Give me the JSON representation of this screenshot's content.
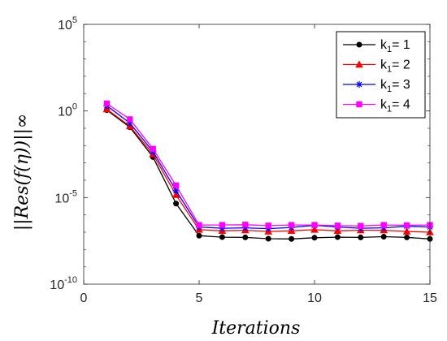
{
  "chart_data": {
    "type": "line",
    "title": "",
    "xlabel": "Iterations",
    "ylabel": "||Res(f(η))||∞",
    "xlim": [
      0,
      15
    ],
    "ylim_log10": [
      -10,
      5
    ],
    "y_scale": "log",
    "grid": false,
    "legend_position": "top-right",
    "x_ticks": [
      0,
      5,
      10,
      15
    ],
    "y_ticks": [
      {
        "exp": "-10",
        "value": 1e-10
      },
      {
        "exp": "-5",
        "value": 1e-05
      },
      {
        "exp": "0",
        "value": 1
      },
      {
        "exp": "5",
        "value": 100000
      }
    ],
    "y_tick_base": "10",
    "x": [
      1,
      2,
      3,
      4,
      5,
      6,
      7,
      8,
      9,
      10,
      11,
      12,
      13,
      14,
      15
    ],
    "series": [
      {
        "legend_k": "k",
        "legend_sub": "1",
        "legend_eq": "= 1",
        "color": "#000000",
        "marker": "circle",
        "values": [
          1.12,
          0.115,
          0.0022,
          4.5e-06,
          6.3e-08,
          5.2e-08,
          5e-08,
          4.2e-08,
          4.1e-08,
          4.8e-08,
          5.2e-08,
          5e-08,
          5.5e-08,
          5e-08,
          4.1e-08
        ]
      },
      {
        "legend_k": "k",
        "legend_sub": "1",
        "legend_eq": "= 2",
        "color": "#ff0000",
        "marker": "triangle",
        "values": [
          1.26,
          0.132,
          0.0032,
          1.4e-05,
          1.4e-07,
          1.2e-07,
          1.3e-07,
          1.1e-07,
          1.2e-07,
          1.4e-07,
          1.2e-07,
          1.3e-07,
          1.3e-07,
          1.1e-07,
          1e-07
        ]
      },
      {
        "legend_k": "k",
        "legend_sub": "1",
        "legend_eq": "= 3",
        "color": "#0000ff",
        "marker": "star",
        "values": [
          2.0,
          0.2,
          0.0045,
          2.5e-05,
          2e-07,
          1.7e-07,
          1.8e-07,
          1.6e-07,
          1.9e-07,
          2.5e-07,
          2e-07,
          1.7e-07,
          1.8e-07,
          2.2e-07,
          2e-07
        ]
      },
      {
        "legend_k": "k",
        "legend_sub": "1",
        "legend_eq": "= 4",
        "color": "#ff00ff",
        "marker": "square",
        "values": [
          2.7,
          0.33,
          0.0065,
          5e-05,
          2.6e-07,
          2.6e-07,
          2.7e-07,
          2.4e-07,
          2.6e-07,
          2.6e-07,
          2.4e-07,
          2.3e-07,
          2.6e-07,
          2.5e-07,
          2.6e-07
        ]
      }
    ]
  }
}
